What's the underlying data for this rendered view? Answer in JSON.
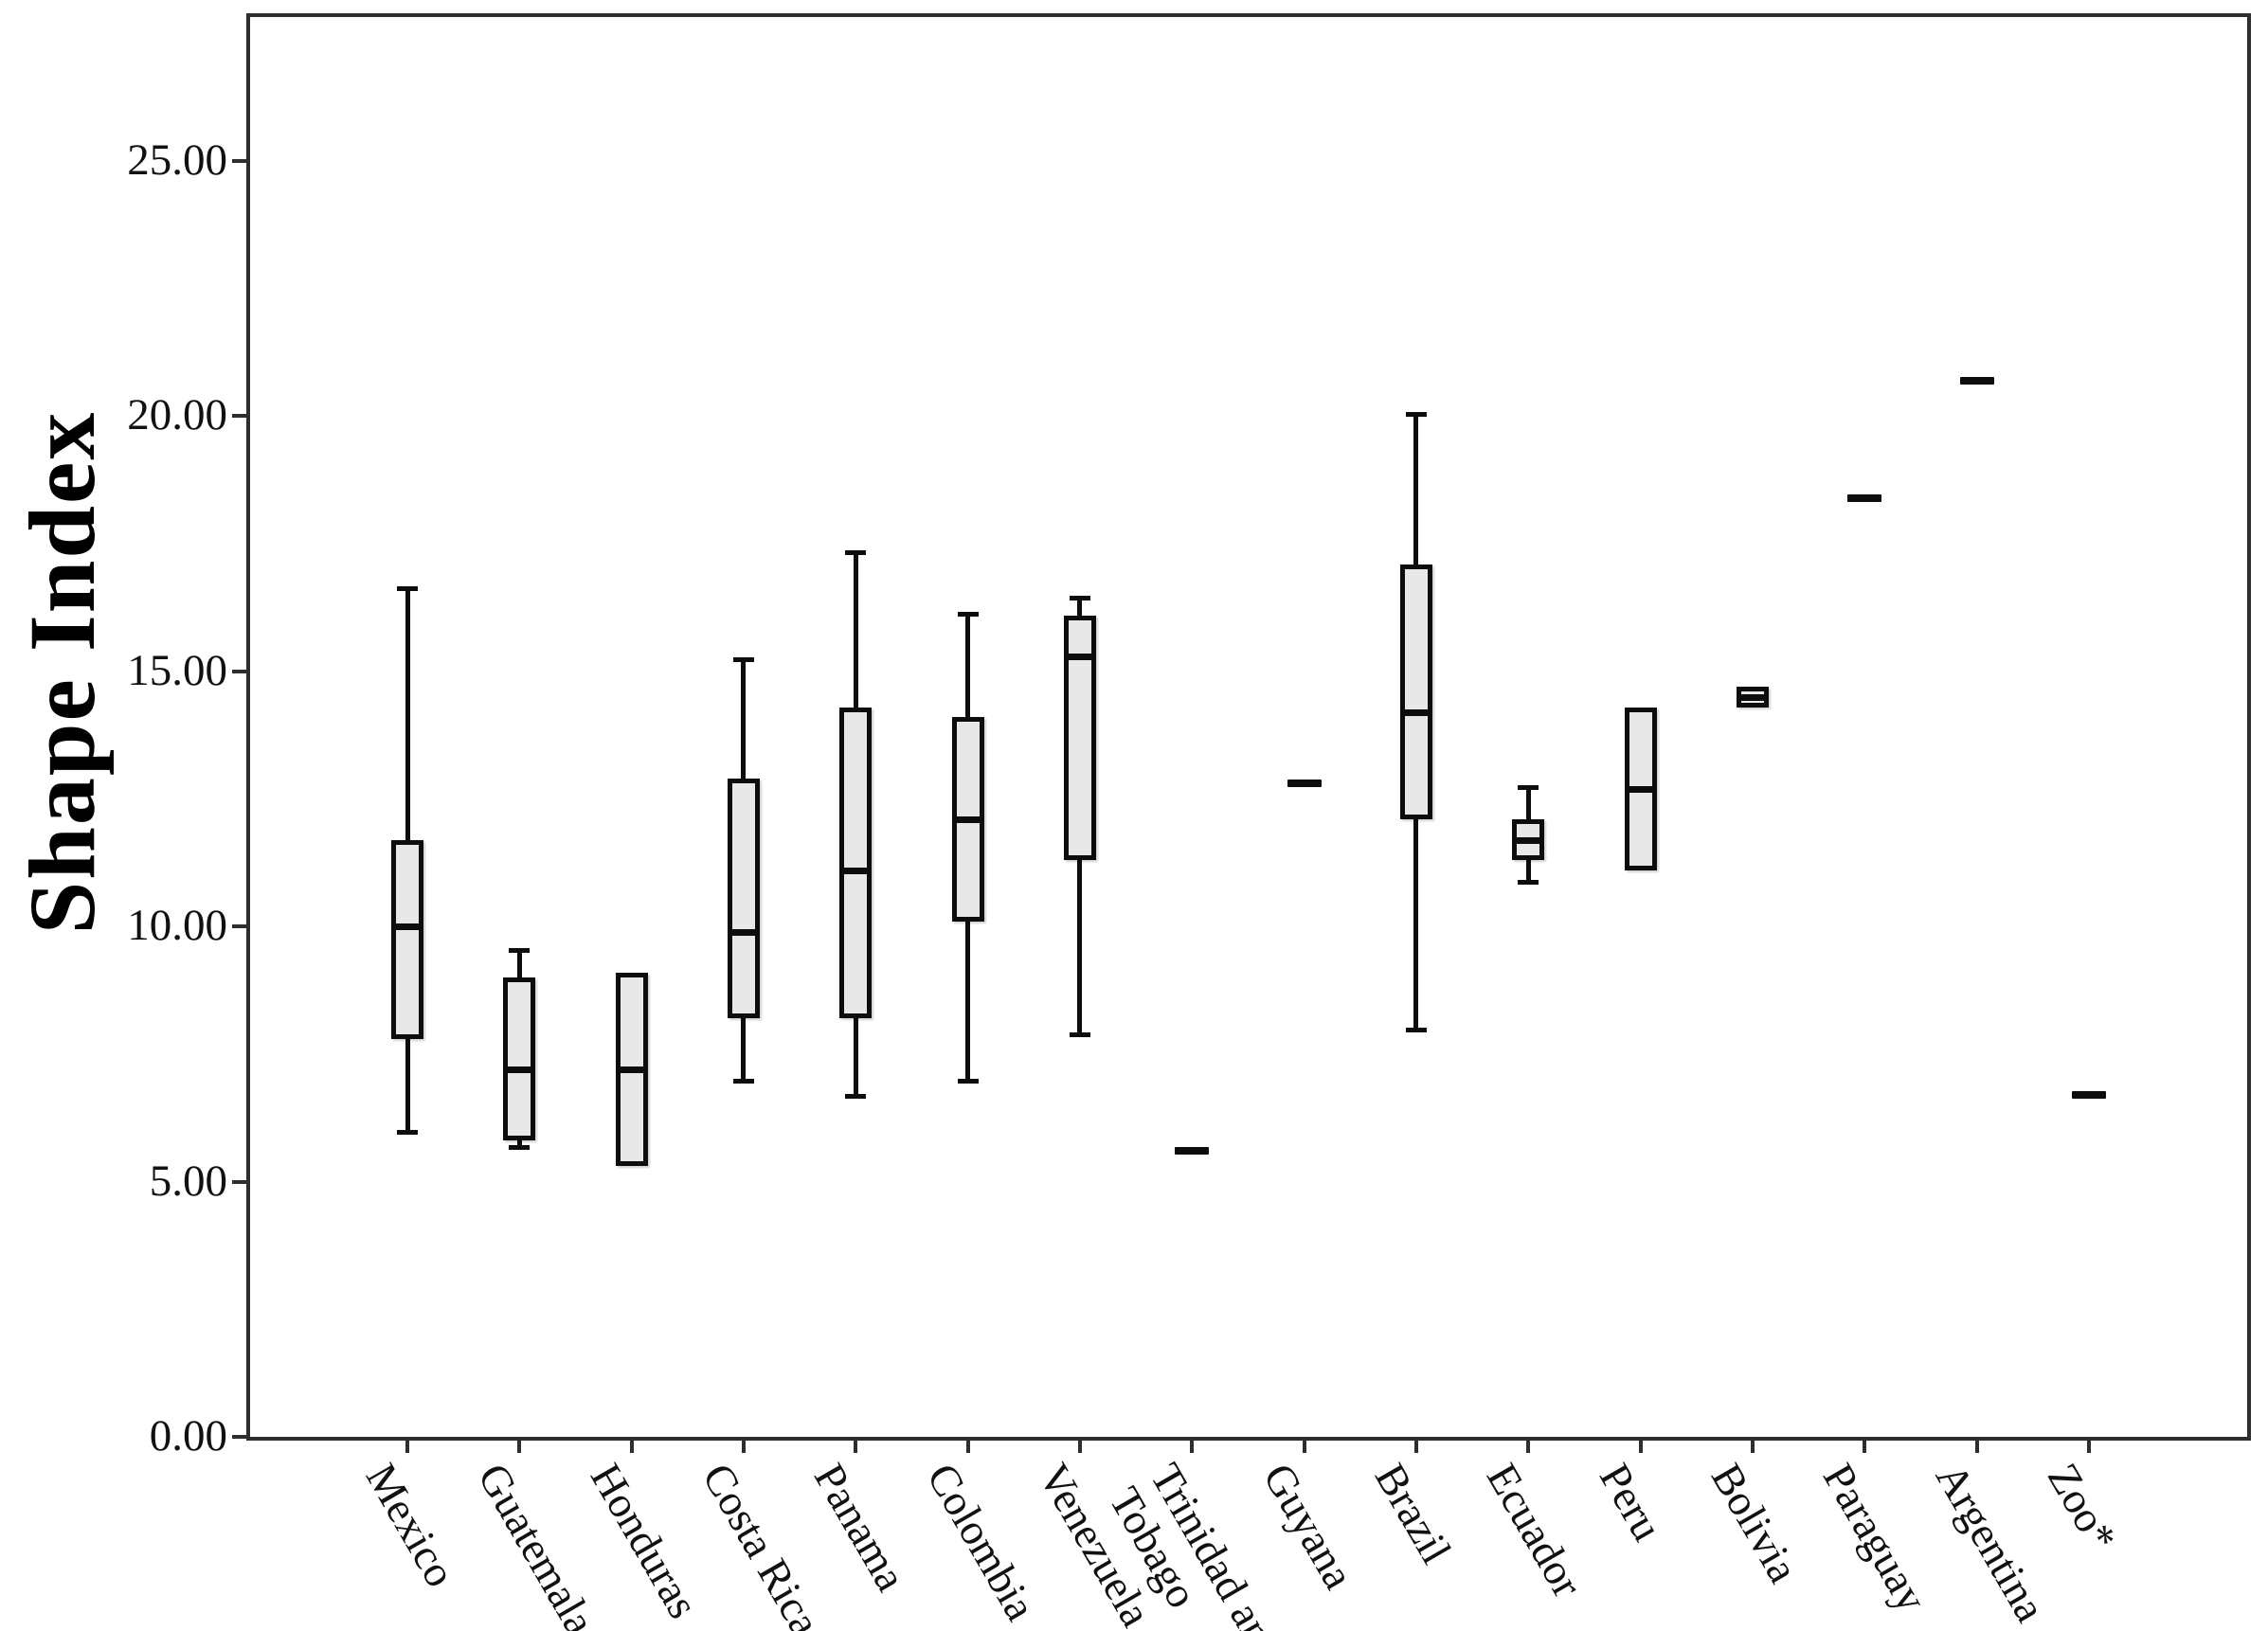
{
  "chart_data": {
    "type": "box",
    "title": "",
    "xlabel": "",
    "ylabel": "Shape Index",
    "ylim": [
      0,
      27.9
    ],
    "yticks": [
      0,
      5,
      10,
      15,
      20,
      25
    ],
    "ytick_labels": [
      "0.00",
      "5.00",
      "10.00",
      "15.00",
      "20.00",
      "25.00"
    ],
    "grid": false,
    "legend": "none",
    "box_fill_color": "#e8e8e8",
    "line_color": "#0d0d0d",
    "categories": [
      {
        "name": "Mexico",
        "label_lines": [
          "Mexico"
        ],
        "kind": "box",
        "low": 6.0,
        "q1": 7.8,
        "median": 10.0,
        "q3": 11.7,
        "high": 16.6
      },
      {
        "name": "Guatemala",
        "label_lines": [
          "Guatemala"
        ],
        "kind": "box",
        "low": 5.7,
        "q1": 5.8,
        "median": 7.2,
        "q3": 9.0,
        "high": 9.5
      },
      {
        "name": "Honduras",
        "label_lines": [
          "Honduras"
        ],
        "kind": "box",
        "q1": 5.3,
        "median": 7.2,
        "q3": 9.1
      },
      {
        "name": "Costa Rica",
        "label_lines": [
          "Costa Rica"
        ],
        "kind": "box",
        "low": 7.0,
        "q1": 8.2,
        "median": 9.9,
        "q3": 12.9,
        "high": 15.2
      },
      {
        "name": "Panama",
        "label_lines": [
          "Panama"
        ],
        "kind": "box",
        "low": 6.7,
        "q1": 8.2,
        "median": 11.1,
        "q3": 14.3,
        "high": 17.3
      },
      {
        "name": "Colombia",
        "label_lines": [
          "Colombia"
        ],
        "kind": "box",
        "low": 7.0,
        "q1": 10.1,
        "median": 12.1,
        "q3": 14.1,
        "high": 16.1
      },
      {
        "name": "Venezuela",
        "label_lines": [
          "Venezuela"
        ],
        "kind": "box",
        "low": 7.9,
        "q1": 11.3,
        "median": 15.3,
        "q3": 16.1,
        "high": 16.4
      },
      {
        "name": "Trinidad and Tobago",
        "label_lines": [
          "Trinidad and",
          "Tobago"
        ],
        "kind": "dash",
        "value": 5.6
      },
      {
        "name": "Guyana",
        "label_lines": [
          "Guyana"
        ],
        "kind": "dash",
        "value": 12.8
      },
      {
        "name": "Brazil",
        "label_lines": [
          "Brazil"
        ],
        "kind": "box",
        "low": 8.0,
        "q1": 12.1,
        "median": 14.2,
        "q3": 17.1,
        "high": 20.0
      },
      {
        "name": "Ecuador",
        "label_lines": [
          "Ecuador"
        ],
        "kind": "box",
        "low": 10.9,
        "q1": 11.3,
        "median": 11.7,
        "q3": 12.1,
        "high": 12.7
      },
      {
        "name": "Peru",
        "label_lines": [
          "Peru"
        ],
        "kind": "box",
        "q1": 11.1,
        "median": 12.7,
        "q3": 14.3
      },
      {
        "name": "Bolivia",
        "label_lines": [
          "Bolivia"
        ],
        "kind": "box",
        "q1": 14.3,
        "median": 14.5,
        "q3": 14.7
      },
      {
        "name": "Paraguay",
        "label_lines": [
          "Paraguay"
        ],
        "kind": "dash",
        "value": 18.4
      },
      {
        "name": "Argentina",
        "label_lines": [
          "Argentina"
        ],
        "kind": "dash",
        "value": 20.7
      },
      {
        "name": "Zoo*",
        "label_lines": [
          "Zoo*"
        ],
        "kind": "dash",
        "value": 6.7
      }
    ]
  }
}
